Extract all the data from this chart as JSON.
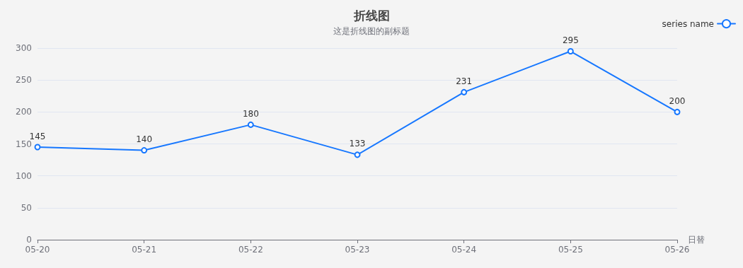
{
  "chart_data": {
    "type": "line",
    "title": "折线图",
    "subtitle": "这是折线图的副标题",
    "xlabel": "日替",
    "categories": [
      "05-20",
      "05-21",
      "05-22",
      "05-23",
      "05-24",
      "05-25",
      "05-26"
    ],
    "series": [
      {
        "name": "series name",
        "color": "#1677ff",
        "values": [
          145,
          140,
          180,
          133,
          231,
          295,
          200
        ]
      }
    ],
    "ylim": [
      0,
      300
    ],
    "yticks": [
      0,
      50,
      100,
      150,
      200,
      250,
      300
    ],
    "grid": "y",
    "legend": "top right",
    "marker": "circle",
    "line_style": "solid",
    "data_labels": true
  }
}
